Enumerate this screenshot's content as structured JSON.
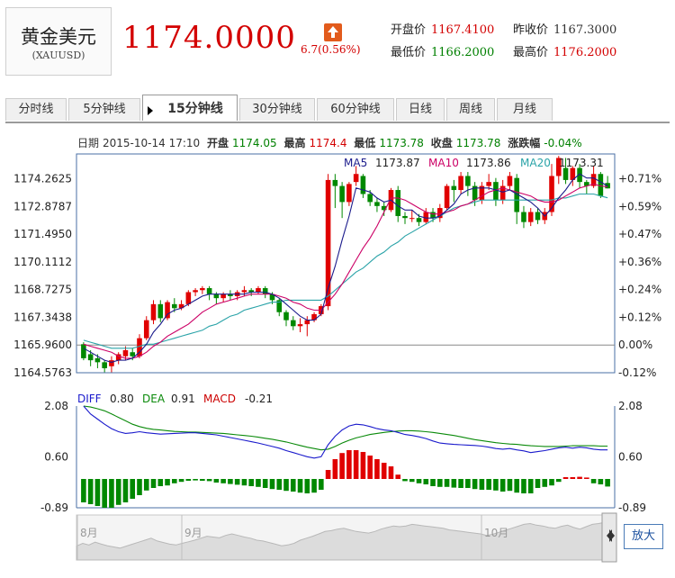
{
  "instrument": {
    "name": "黄金美元",
    "code": "(XAUUSD)"
  },
  "quote": {
    "price": "1174.0000",
    "change": "6.7(0.56%)",
    "open_label": "开盘价",
    "open": "1167.4100",
    "prev_close_label": "昨收价",
    "prev_close": "1167.3000",
    "low_label": "最低价",
    "low": "1166.2000",
    "high_label": "最高价",
    "high": "1176.2000"
  },
  "tabs": [
    {
      "label": "分时线"
    },
    {
      "label": "5分钟线"
    },
    {
      "label": "15分钟线",
      "active": true
    },
    {
      "label": "30分钟线"
    },
    {
      "label": "60分钟线"
    },
    {
      "label": "日线"
    },
    {
      "label": "周线"
    },
    {
      "label": "月线"
    }
  ],
  "infobar": {
    "date_label": "日期",
    "date": "2015-10-14 17:10",
    "open_label": "开盘",
    "open": "1174.05",
    "high_label": "最高",
    "high": "1174.4",
    "low_label": "最低",
    "low": "1173.78",
    "close_label": "收盘",
    "close": "1173.78",
    "pct_label": "涨跌幅",
    "pct": "-0.04%"
  },
  "ma_legend": {
    "ma5_label": "MA5",
    "ma5": "1173.87",
    "ma10_label": "MA10",
    "ma10": "1173.86",
    "ma20_label": "MA20",
    "ma20": "1173.31"
  },
  "macd_legend": {
    "diff_label": "DIFF",
    "diff": "0.80",
    "dea_label": "DEA",
    "dea": "0.91",
    "macd_label": "MACD",
    "macd": "-0.21"
  },
  "colors": {
    "up": "#e00000",
    "down": "#008800",
    "ma5": "#1c1c8c",
    "ma10": "#cc0066",
    "ma20": "#2aa3a8",
    "diff": "#1a1acc",
    "dea": "#0a8a0a"
  },
  "zoom_label": "放大",
  "chart_data": [
    {
      "type": "candlestick",
      "y_ticks_left": [
        "1174.2625",
        "1172.8787",
        "1171.4950",
        "1170.1112",
        "1168.7275",
        "1167.3438",
        "1165.9600",
        "1164.5763"
      ],
      "y_ticks_right": [
        "+0.71%",
        "+0.59%",
        "+0.47%",
        "+0.36%",
        "+0.24%",
        "+0.12%",
        "0.00%",
        "-0.12%"
      ],
      "ylim": [
        1164.5763,
        1175.5
      ],
      "baseline": 1165.96,
      "candles": [
        [
          1166.0,
          1165.3,
          1166.1,
          1165.2
        ],
        [
          1165.5,
          1165.2,
          1165.7,
          1164.9
        ],
        [
          1165.3,
          1165.1,
          1165.5,
          1164.8
        ],
        [
          1165.1,
          1164.8,
          1165.2,
          1164.6
        ],
        [
          1164.9,
          1165.2,
          1165.4,
          1164.6
        ],
        [
          1165.2,
          1165.5,
          1165.6,
          1165.0
        ],
        [
          1165.4,
          1165.7,
          1165.9,
          1165.2
        ],
        [
          1165.6,
          1165.4,
          1165.8,
          1165.2
        ],
        [
          1165.4,
          1166.3,
          1166.5,
          1165.3
        ],
        [
          1166.3,
          1167.2,
          1167.4,
          1166.2
        ],
        [
          1167.2,
          1168.0,
          1168.2,
          1167.0
        ],
        [
          1168.0,
          1167.3,
          1168.2,
          1167.1
        ],
        [
          1167.3,
          1168.1,
          1168.2,
          1167.2
        ],
        [
          1168.0,
          1167.8,
          1168.3,
          1167.6
        ],
        [
          1167.8,
          1168.0,
          1168.2,
          1167.7
        ],
        [
          1168.0,
          1168.6,
          1168.7,
          1167.9
        ],
        [
          1168.6,
          1168.7,
          1168.8,
          1168.4
        ],
        [
          1168.7,
          1168.8,
          1168.9,
          1168.5
        ],
        [
          1168.8,
          1168.5,
          1168.9,
          1168.2
        ],
        [
          1168.5,
          1168.3,
          1168.6,
          1168.0
        ],
        [
          1168.3,
          1168.5,
          1168.6,
          1168.1
        ],
        [
          1168.5,
          1168.4,
          1168.7,
          1168.2
        ],
        [
          1168.4,
          1168.6,
          1168.7,
          1168.2
        ],
        [
          1168.6,
          1168.7,
          1168.9,
          1168.4
        ],
        [
          1168.7,
          1168.6,
          1168.8,
          1168.4
        ],
        [
          1168.6,
          1168.8,
          1168.9,
          1168.5
        ],
        [
          1168.8,
          1168.5,
          1168.9,
          1168.3
        ],
        [
          1168.5,
          1168.2,
          1168.6,
          1168.0
        ],
        [
          1168.2,
          1167.6,
          1168.3,
          1167.4
        ],
        [
          1167.6,
          1167.2,
          1167.7,
          1166.9
        ],
        [
          1167.2,
          1166.9,
          1167.4,
          1166.7
        ],
        [
          1166.9,
          1167.0,
          1167.3,
          1166.6
        ],
        [
          1167.0,
          1167.2,
          1167.4,
          1166.4
        ],
        [
          1167.2,
          1167.5,
          1167.6,
          1167.1
        ],
        [
          1167.5,
          1167.9,
          1168.0,
          1167.4
        ],
        [
          1167.9,
          1174.2,
          1174.5,
          1167.7
        ],
        [
          1174.2,
          1173.9,
          1174.5,
          1172.8
        ],
        [
          1173.9,
          1173.1,
          1174.1,
          1172.3
        ],
        [
          1173.1,
          1174.0,
          1174.1,
          1172.9
        ],
        [
          1174.1,
          1174.5,
          1174.9,
          1173.9
        ],
        [
          1174.4,
          1173.5,
          1174.5,
          1173.3
        ],
        [
          1173.5,
          1173.1,
          1173.7,
          1172.9
        ],
        [
          1173.1,
          1172.9,
          1173.3,
          1172.6
        ],
        [
          1172.9,
          1172.7,
          1173.1,
          1172.4
        ],
        [
          1172.7,
          1173.7,
          1173.8,
          1172.6
        ],
        [
          1173.7,
          1172.4,
          1173.9,
          1172.1
        ],
        [
          1172.4,
          1172.3,
          1172.6,
          1172.0
        ],
        [
          1172.3,
          1172.3,
          1172.7,
          1172.1
        ],
        [
          1172.3,
          1172.1,
          1172.5,
          1171.9
        ],
        [
          1172.1,
          1172.6,
          1172.8,
          1172.0
        ],
        [
          1172.6,
          1172.3,
          1172.8,
          1172.1
        ],
        [
          1172.3,
          1172.8,
          1173.0,
          1172.1
        ],
        [
          1172.8,
          1173.9,
          1174.0,
          1172.7
        ],
        [
          1173.9,
          1173.7,
          1174.2,
          1173.1
        ],
        [
          1173.7,
          1174.4,
          1174.6,
          1173.5
        ],
        [
          1174.4,
          1173.9,
          1174.6,
          1173.4
        ],
        [
          1173.9,
          1173.2,
          1174.1,
          1172.9
        ],
        [
          1173.2,
          1173.9,
          1174.1,
          1173.0
        ],
        [
          1173.9,
          1174.1,
          1174.5,
          1173.7
        ],
        [
          1174.1,
          1173.2,
          1174.3,
          1172.9
        ],
        [
          1173.2,
          1173.9,
          1174.2,
          1173.0
        ],
        [
          1173.9,
          1174.4,
          1174.6,
          1173.7
        ],
        [
          1174.3,
          1172.6,
          1174.5,
          1172.0
        ],
        [
          1172.6,
          1172.1,
          1172.9,
          1171.8
        ],
        [
          1172.1,
          1172.6,
          1172.8,
          1171.9
        ],
        [
          1172.6,
          1172.2,
          1172.8,
          1172.0
        ],
        [
          1172.2,
          1172.6,
          1172.8,
          1172.0
        ],
        [
          1172.6,
          1174.4,
          1175.0,
          1172.4
        ],
        [
          1174.4,
          1175.3,
          1175.4,
          1174.0
        ],
        [
          1174.8,
          1174.2,
          1175.3,
          1174.0
        ],
        [
          1174.2,
          1174.8,
          1174.9,
          1173.9
        ],
        [
          1174.8,
          1174.1,
          1175.0,
          1173.8
        ],
        [
          1174.1,
          1173.9,
          1174.2,
          1173.5
        ],
        [
          1173.9,
          1174.5,
          1174.9,
          1173.8
        ],
        [
          1174.5,
          1173.4,
          1174.6,
          1173.3
        ],
        [
          1174.05,
          1173.78,
          1174.4,
          1173.78
        ]
      ],
      "ma5": [
        1165.8,
        1165.6,
        1165.4,
        1165.2,
        1165.1,
        1165.2,
        1165.2,
        1165.3,
        1165.6,
        1166.0,
        1166.6,
        1167.0,
        1167.5,
        1167.7,
        1167.8,
        1168.0,
        1168.2,
        1168.4,
        1168.5,
        1168.5,
        1168.5,
        1168.5,
        1168.5,
        1168.5,
        1168.6,
        1168.6,
        1168.6,
        1168.5,
        1168.3,
        1168.0,
        1167.7,
        1167.4,
        1167.2,
        1167.2,
        1167.5,
        1168.8,
        1169.9,
        1171.2,
        1172.4,
        1173.8,
        1173.7,
        1173.6,
        1173.3,
        1173.1,
        1173.2,
        1172.9,
        1172.7,
        1172.7,
        1172.4,
        1172.3,
        1172.3,
        1172.4,
        1172.7,
        1173.0,
        1173.5,
        1173.7,
        1173.8,
        1173.8,
        1173.8,
        1173.7,
        1173.6,
        1173.7,
        1173.5,
        1173.3,
        1173.1,
        1172.8,
        1172.4,
        1172.8,
        1173.3,
        1173.7,
        1174.2,
        1174.5,
        1174.3,
        1174.3,
        1174.1,
        1173.9
      ],
      "ma10": [
        1166.0,
        1165.9,
        1165.8,
        1165.7,
        1165.6,
        1165.4,
        1165.3,
        1165.3,
        1165.4,
        1165.6,
        1165.9,
        1166.1,
        1166.4,
        1166.6,
        1166.8,
        1167.0,
        1167.3,
        1167.6,
        1167.8,
        1168.0,
        1168.1,
        1168.2,
        1168.3,
        1168.4,
        1168.5,
        1168.5,
        1168.5,
        1168.5,
        1168.4,
        1168.3,
        1168.1,
        1168.0,
        1167.8,
        1167.7,
        1167.7,
        1168.1,
        1168.5,
        1169.0,
        1169.6,
        1170.2,
        1170.8,
        1171.3,
        1171.9,
        1172.6,
        1173.3,
        1173.3,
        1173.2,
        1173.0,
        1172.8,
        1172.6,
        1172.5,
        1172.5,
        1172.6,
        1172.7,
        1172.9,
        1173.0,
        1173.2,
        1173.4,
        1173.6,
        1173.7,
        1173.8,
        1173.7,
        1173.6,
        1173.5,
        1173.4,
        1173.2,
        1173.1,
        1173.1,
        1173.2,
        1173.4,
        1173.6,
        1173.8,
        1173.9,
        1174.0,
        1173.9,
        1173.86
      ],
      "ma20": [
        1166.2,
        1166.1,
        1166.0,
        1165.9,
        1165.8,
        1165.8,
        1165.8,
        1165.8,
        1165.9,
        1166.0,
        1166.0,
        1166.1,
        1166.2,
        1166.3,
        1166.4,
        1166.5,
        1166.6,
        1166.7,
        1166.9,
        1167.0,
        1167.2,
        1167.4,
        1167.5,
        1167.7,
        1167.8,
        1167.9,
        1168.0,
        1168.1,
        1168.1,
        1168.2,
        1168.2,
        1168.2,
        1168.2,
        1168.2,
        1168.2,
        1168.4,
        1168.7,
        1169.0,
        1169.3,
        1169.6,
        1169.8,
        1170.1,
        1170.4,
        1170.6,
        1170.9,
        1171.1,
        1171.4,
        1171.6,
        1171.8,
        1172.0,
        1172.2,
        1172.4,
        1172.6,
        1172.8,
        1172.9,
        1173.0,
        1173.1,
        1173.2,
        1173.2,
        1173.2,
        1173.2,
        1173.2,
        1173.2,
        1173.2,
        1173.2,
        1173.2,
        1173.2,
        1173.2,
        1173.3,
        1173.3,
        1173.4,
        1173.5,
        1173.5,
        1173.5,
        1173.4,
        1173.31
      ]
    },
    {
      "type": "macd",
      "y_ticks": [
        "2.08",
        "0.60",
        "-0.89"
      ],
      "ylim": [
        -0.89,
        2.08
      ],
      "diff": [
        2.08,
        1.85,
        1.7,
        1.55,
        1.42,
        1.33,
        1.28,
        1.3,
        1.33,
        1.3,
        1.28,
        1.26,
        1.27,
        1.28,
        1.29,
        1.3,
        1.3,
        1.28,
        1.26,
        1.24,
        1.2,
        1.16,
        1.12,
        1.08,
        1.04,
        1.0,
        0.95,
        0.9,
        0.85,
        0.78,
        0.72,
        0.66,
        0.6,
        0.56,
        0.6,
        0.95,
        1.2,
        1.38,
        1.5,
        1.55,
        1.53,
        1.48,
        1.42,
        1.38,
        1.36,
        1.31,
        1.25,
        1.22,
        1.18,
        1.13,
        1.06,
        1.0,
        0.98,
        0.96,
        0.95,
        0.94,
        0.93,
        0.91,
        0.88,
        0.84,
        0.82,
        0.84,
        0.8,
        0.77,
        0.72,
        0.75,
        0.78,
        0.82,
        0.86,
        0.88,
        0.85,
        0.88,
        0.86,
        0.82,
        0.8,
        0.8
      ],
      "dea": [
        2.08,
        2.05,
        2.0,
        1.94,
        1.85,
        1.75,
        1.65,
        1.55,
        1.48,
        1.43,
        1.4,
        1.38,
        1.36,
        1.34,
        1.33,
        1.32,
        1.32,
        1.31,
        1.3,
        1.29,
        1.28,
        1.26,
        1.24,
        1.22,
        1.2,
        1.17,
        1.14,
        1.11,
        1.07,
        1.03,
        0.98,
        0.93,
        0.88,
        0.84,
        0.8,
        0.82,
        0.9,
        1.0,
        1.08,
        1.15,
        1.2,
        1.25,
        1.28,
        1.31,
        1.33,
        1.35,
        1.36,
        1.36,
        1.35,
        1.33,
        1.31,
        1.28,
        1.25,
        1.22,
        1.18,
        1.14,
        1.1,
        1.07,
        1.04,
        1.01,
        0.99,
        0.97,
        0.96,
        0.94,
        0.92,
        0.91,
        0.9,
        0.9,
        0.9,
        0.91,
        0.92,
        0.92,
        0.92,
        0.92,
        0.91,
        0.91
      ],
      "macd": [
        -0.65,
        -0.7,
        -0.75,
        -0.8,
        -0.8,
        -0.72,
        -0.65,
        -0.55,
        -0.45,
        -0.32,
        -0.25,
        -0.2,
        -0.18,
        -0.12,
        -0.08,
        -0.05,
        -0.04,
        -0.05,
        -0.06,
        -0.1,
        -0.12,
        -0.14,
        -0.16,
        -0.18,
        -0.2,
        -0.22,
        -0.25,
        -0.28,
        -0.3,
        -0.33,
        -0.35,
        -0.38,
        -0.4,
        -0.38,
        -0.3,
        0.25,
        0.55,
        0.72,
        0.8,
        0.8,
        0.75,
        0.65,
        0.55,
        0.45,
        0.35,
        0.12,
        -0.06,
        -0.08,
        -0.12,
        -0.15,
        -0.2,
        -0.22,
        -0.22,
        -0.24,
        -0.25,
        -0.25,
        -0.28,
        -0.3,
        -0.3,
        -0.32,
        -0.35,
        -0.33,
        -0.38,
        -0.4,
        -0.4,
        -0.25,
        -0.22,
        -0.18,
        -0.08,
        0.05,
        0.05,
        0.06,
        0.04,
        -0.12,
        -0.15,
        -0.21
      ]
    },
    {
      "type": "area",
      "x_labels": [
        "8月",
        "9月",
        "10月"
      ],
      "values": [
        0.35,
        0.42,
        0.38,
        0.45,
        0.4,
        0.36,
        0.33,
        0.3,
        0.35,
        0.4,
        0.45,
        0.5,
        0.55,
        0.48,
        0.44,
        0.4,
        0.38,
        0.42,
        0.46,
        0.5,
        0.55,
        0.6,
        0.58,
        0.56,
        0.62,
        0.66,
        0.62,
        0.58,
        0.55,
        0.5,
        0.48,
        0.44,
        0.4,
        0.36,
        0.38,
        0.42,
        0.5,
        0.55,
        0.6,
        0.66,
        0.72,
        0.74,
        0.78,
        0.8,
        0.76,
        0.72,
        0.7,
        0.68,
        0.72,
        0.78,
        0.82,
        0.86,
        0.84,
        0.86,
        0.9,
        0.88,
        0.86,
        0.84,
        0.82,
        0.8,
        0.76,
        0.74,
        0.72,
        0.7,
        0.68,
        0.66,
        0.62,
        0.65,
        0.7,
        0.75,
        0.8,
        0.85,
        0.9,
        0.92,
        0.88,
        0.86,
        0.82,
        0.8,
        0.85,
        0.88,
        0.82,
        0.78,
        0.84,
        0.9,
        0.92,
        0.95
      ]
    }
  ]
}
